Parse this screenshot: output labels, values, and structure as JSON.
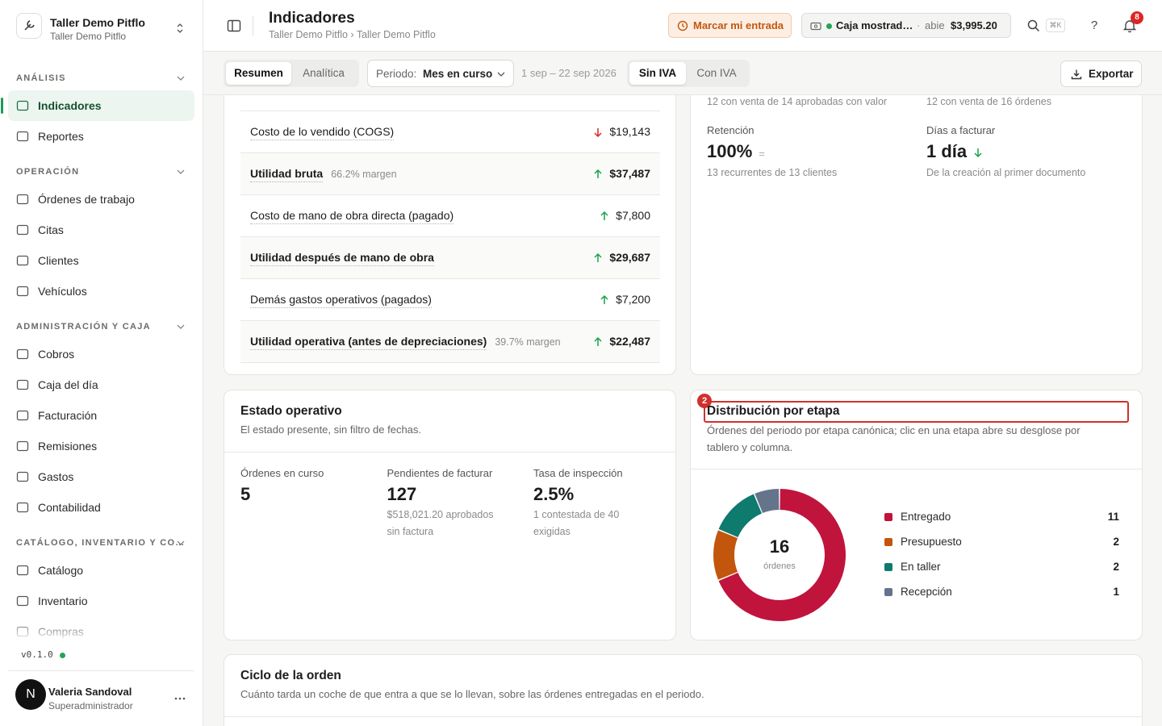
{
  "sidebar": {
    "org": {
      "name": "Taller Demo Pitflo",
      "sub": "Taller Demo Pitflo"
    },
    "sections": [
      {
        "title": "ANÁLISIS",
        "items": [
          "Indicadores",
          "Reportes"
        ]
      },
      {
        "title": "OPERACIÓN",
        "items": [
          "Órdenes de trabajo",
          "Citas",
          "Clientes",
          "Vehículos"
        ]
      },
      {
        "title": "ADMINISTRACIÓN Y CAJA",
        "items": [
          "Cobros",
          "Caja del día",
          "Facturación",
          "Remisiones",
          "Gastos",
          "Contabilidad"
        ]
      },
      {
        "title": "CATÁLOGO, INVENTARIO Y CO…",
        "items": [
          "Catálogo",
          "Inventario",
          "Compras"
        ]
      }
    ],
    "version": "v0.1.0",
    "user": {
      "initial": "N",
      "name": "Valeria Sandoval",
      "role": "Superadministrador"
    }
  },
  "header": {
    "title": "Indicadores",
    "breadcrumb": "Taller Demo Pitflo › Taller Demo Pitflo",
    "clock_in": "Marcar mi entrada",
    "register": {
      "name": "Caja mostrad…",
      "sep": "·",
      "status": "abie",
      "amount": "$3,995.20"
    },
    "shortcut": "⌘K",
    "help": "?",
    "notifications": "8"
  },
  "toolbar": {
    "tabs": [
      "Resumen",
      "Analítica"
    ],
    "period_label": "Periodo:",
    "period": "Mes en curso",
    "range": "1 sep – 22 sep 2026",
    "tax": [
      "Sin IVA",
      "Con IVA"
    ],
    "export": "Exportar"
  },
  "pnl_rows": [
    {
      "label": "Costo de lo vendido (COGS)",
      "value": "$19,143",
      "trend": "down",
      "tone": "negative",
      "bold": false
    },
    {
      "label": "Utilidad bruta",
      "note": "66.2% margen",
      "value": "$37,487",
      "trend": "up",
      "tone": "positive",
      "bold": true
    },
    {
      "label": "Costo de mano de obra directa (pagado)",
      "value": "$7,800",
      "trend": "up",
      "tone": "positive",
      "bold": false
    },
    {
      "label": "Utilidad después de mano de obra",
      "value": "$29,687",
      "trend": "up",
      "tone": "positive",
      "bold": true
    },
    {
      "label": "Demás gastos operativos (pagados)",
      "value": "$7,200",
      "trend": "up",
      "tone": "positive",
      "bold": false
    },
    {
      "label": "Utilidad operativa (antes de depreciaciones)",
      "note": "39.7% margen",
      "value": "$22,487",
      "trend": "up",
      "tone": "positive",
      "bold": true
    }
  ],
  "metrics_top": [
    {
      "sub": "12 con venta de 14 aprobadas con valor"
    },
    {
      "sub": "12 con venta de 16 órdenes"
    },
    {
      "label": "Retención",
      "value": "100%",
      "indicator": "=",
      "sub": "13 recurrentes de 13 clientes"
    },
    {
      "label": "Días a facturar",
      "value": "1 día",
      "trend": "down",
      "tone": "positive",
      "sub": "De la creación al primer documento"
    }
  ],
  "estado": {
    "title": "Estado operativo",
    "subtitle": "El estado presente, sin filtro de fechas.",
    "metrics": [
      {
        "label": "Órdenes en curso",
        "value": "5"
      },
      {
        "label": "Pendientes de facturar",
        "value": "127",
        "sub": "$518,021.20 aprobados sin factura"
      },
      {
        "label": "Tasa de inspección",
        "value": "2.5%",
        "sub": "1 contestada de 40 exigidas"
      }
    ]
  },
  "distribucion": {
    "badge": "2",
    "title": "Distribución por etapa",
    "subtitle": "Órdenes del periodo por etapa canónica; clic en una etapa abre su desglose por tablero y columna."
  },
  "chart_data": {
    "type": "donut",
    "center_value": 16,
    "center_label": "órdenes",
    "categories": [
      "Entregado",
      "Presupuesto",
      "En taller",
      "Recepción"
    ],
    "values": [
      11,
      2,
      2,
      1
    ],
    "colors": [
      "#c0143c",
      "#c2560c",
      "#0f7a6e",
      "#64748b"
    ]
  },
  "ciclo": {
    "title": "Ciclo de la orden",
    "subtitle": "Cuánto tarda un coche de que entra a que se lo llevan, sobre las órdenes entregadas en el periodo."
  }
}
